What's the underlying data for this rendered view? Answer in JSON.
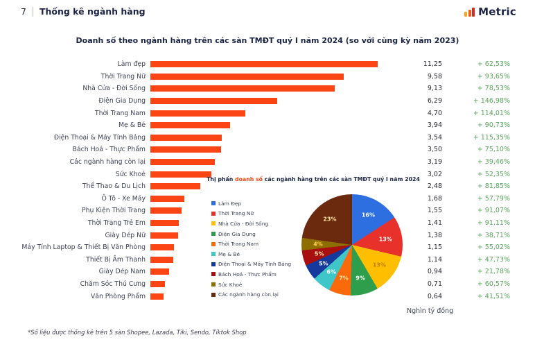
{
  "header": {
    "page_number": "7",
    "section_title": "Thống kê ngành hàng",
    "logo_text": "Metric"
  },
  "chart_title": "Doanh số theo ngành hàng trên các sàn TMĐT quý I năm 2024 (so với cùng kỳ năm 2023)",
  "unit_label": "Nghìn tỷ đồng",
  "footnote": "*Số liệu được thống kê trên 5 sàn Shopee, Lazada, Tiki, Sendo, Tiktok Shop",
  "colors": {
    "bar": "#FB4514",
    "positive_change": "#57A65A",
    "title_text": "#1B2444",
    "accent": "#FB4514"
  },
  "chart_data": [
    {
      "type": "bar",
      "orientation": "horizontal",
      "title": "Doanh số theo ngành hàng trên các sàn TMĐT quý I năm 2024 (so với cùng kỳ năm 2023)",
      "unit": "Nghìn tỷ đồng",
      "xlim": [
        0,
        11.85
      ],
      "categories": [
        "Làm đẹp",
        "Thời Trang Nữ",
        "Nhà Cửa - Đời Sống",
        "Điện Gia Dụng",
        "Thời Trang Nam",
        "Mẹ & Bé",
        "Điện Thoại & Máy Tính Bảng",
        "Bách Hoá - Thực Phẩm",
        "Các ngành hàng còn lại",
        "Sức Khoẻ",
        "Thể Thao & Du Lịch",
        "Ô Tô - Xe Máy",
        "Phụ Kiện Thời Trang",
        "Thời Trang Trẻ Em",
        "Giày Dép Nữ",
        "Máy Tính Laptop & Thiết Bị Văn Phòng",
        "Thiết Bị Âm Thanh",
        "Giày Dép Nam",
        "Chăm Sóc Thú Cưng",
        "Văn Phòng Phẩm"
      ],
      "values": [
        11.25,
        9.58,
        9.13,
        6.29,
        4.7,
        3.94,
        3.54,
        3.5,
        3.19,
        3.02,
        2.48,
        1.68,
        1.55,
        1.41,
        1.38,
        1.15,
        1.14,
        0.94,
        0.71,
        0.64
      ],
      "value_labels": [
        "11,25",
        "9,58",
        "9,13",
        "6,29",
        "4,70",
        "3,94",
        "3,54",
        "3,50",
        "3,19",
        "3,02",
        "2,48",
        "1,68",
        "1,55",
        "1,41",
        "1,38",
        "1,15",
        "1,14",
        "0,94",
        "0,71",
        "0,64"
      ],
      "change_labels": [
        "+ 62,53%",
        "+ 93,65%",
        "+ 78,53%",
        "+ 146,98%",
        "+ 114,01%",
        "+ 90,73%",
        "+ 115,35%",
        "+ 75,10%",
        "+ 39,46%",
        "+ 52,35%",
        "+ 81,85%",
        "+ 57,79%",
        "+ 91,07%",
        "+ 91,11%",
        "+ 38,71%",
        "+ 55,02%",
        "+ 47,73%",
        "+ 21,78%",
        "+ 60,57%",
        "+ 41,51%"
      ]
    },
    {
      "type": "pie",
      "title_prefix": "Thị phần ",
      "title_highlight": "doanh số",
      "title_suffix": " các ngành hàng trên các sàn TMĐT quý I năm 2024",
      "legend_position": "left",
      "slices": [
        {
          "label": "Làm Đẹp",
          "pct": 16,
          "color": "#2D6FE0",
          "label_color": "#FFFFFF"
        },
        {
          "label": "Thời Trang Nữ",
          "pct": 13,
          "color": "#E8312B",
          "label_color": "#FFFFFF"
        },
        {
          "label": "Nhà Cửa - Đời Sống",
          "pct": 13,
          "color": "#FFBE00",
          "label_color": "#C07F00"
        },
        {
          "label": "Điện Gia Dụng",
          "pct": 9,
          "color": "#2E9E4C",
          "label_color": "#FFFFFF"
        },
        {
          "label": "Thời Trang Nam",
          "pct": 7,
          "color": "#FA6A0A",
          "label_color": "#FFE9B0"
        },
        {
          "label": "Mẹ & Bé",
          "pct": 6,
          "color": "#3EC6C9",
          "label_color": "#FFFFFF"
        },
        {
          "label": "Điện Thoại & Máy Tính Bảng",
          "pct": 5,
          "color": "#16399E",
          "label_color": "#FFFFFF"
        },
        {
          "label": "Bách Hoá - Thực Phẩm",
          "pct": 5,
          "color": "#A8100F",
          "label_color": "#FFE9B0"
        },
        {
          "label": "Sức Khoẻ",
          "pct": 4,
          "color": "#8F6E00",
          "label_color": "#FFD24A"
        },
        {
          "label": "Các ngành hàng còn lại",
          "pct": 23,
          "color": "#6B2A0E",
          "label_color": "#F7E6A2"
        }
      ]
    }
  ]
}
